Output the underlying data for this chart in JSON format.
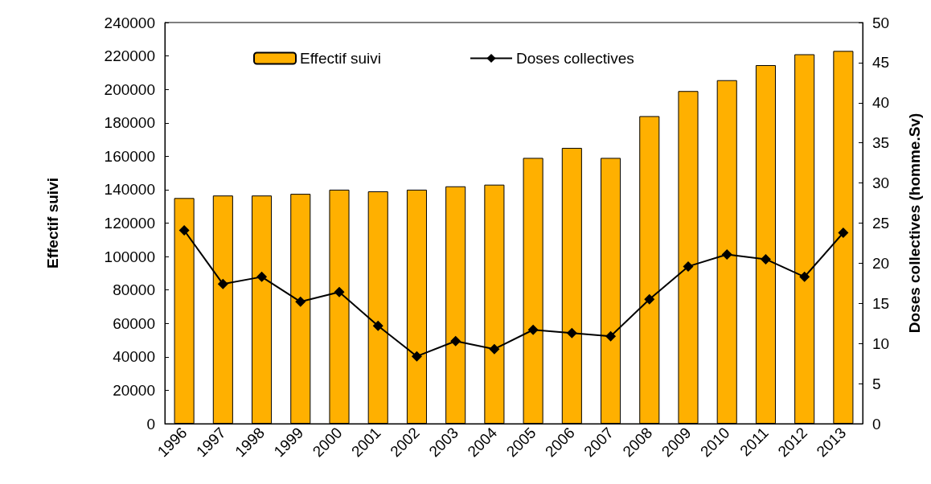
{
  "chart_data": {
    "type": "bar",
    "ylabel": "Effectif suivi",
    "y2label": "Doses collectives (homme.Sv)",
    "categories": [
      "1996",
      "1997",
      "1998",
      "1999",
      "2000",
      "2001",
      "2002",
      "2003",
      "2004",
      "2005",
      "2006",
      "2007",
      "2008",
      "2009",
      "2010",
      "2011",
      "2012",
      "2013"
    ],
    "series": [
      {
        "name": "Effectif suivi",
        "color": "#ffb000",
        "values": [
          135000,
          136500,
          136500,
          137500,
          140000,
          139000,
          140000,
          142000,
          143000,
          159000,
          165000,
          159000,
          184000,
          199000,
          205500,
          214500,
          221000,
          223000
        ]
      },
      {
        "name": "Doses collectives",
        "type": "line",
        "axis": "y2",
        "color": "#000000",
        "marker": "diamond",
        "line_style": "solid",
        "values": [
          24.1,
          17.4,
          18.3,
          15.2,
          16.4,
          12.2,
          8.4,
          10.3,
          9.3,
          11.7,
          11.3,
          10.9,
          15.5,
          19.6,
          21.1,
          20.5,
          18.3,
          23.8
        ]
      }
    ],
    "ylim": [
      0,
      240000
    ],
    "yticks": [
      0,
      20000,
      40000,
      60000,
      80000,
      100000,
      120000,
      140000,
      160000,
      180000,
      200000,
      220000,
      240000
    ],
    "y2lim": [
      0,
      50
    ],
    "y2ticks": [
      0,
      5,
      10,
      15,
      20,
      25,
      30,
      35,
      40,
      45,
      50
    ],
    "grid": false,
    "legend": "top"
  }
}
